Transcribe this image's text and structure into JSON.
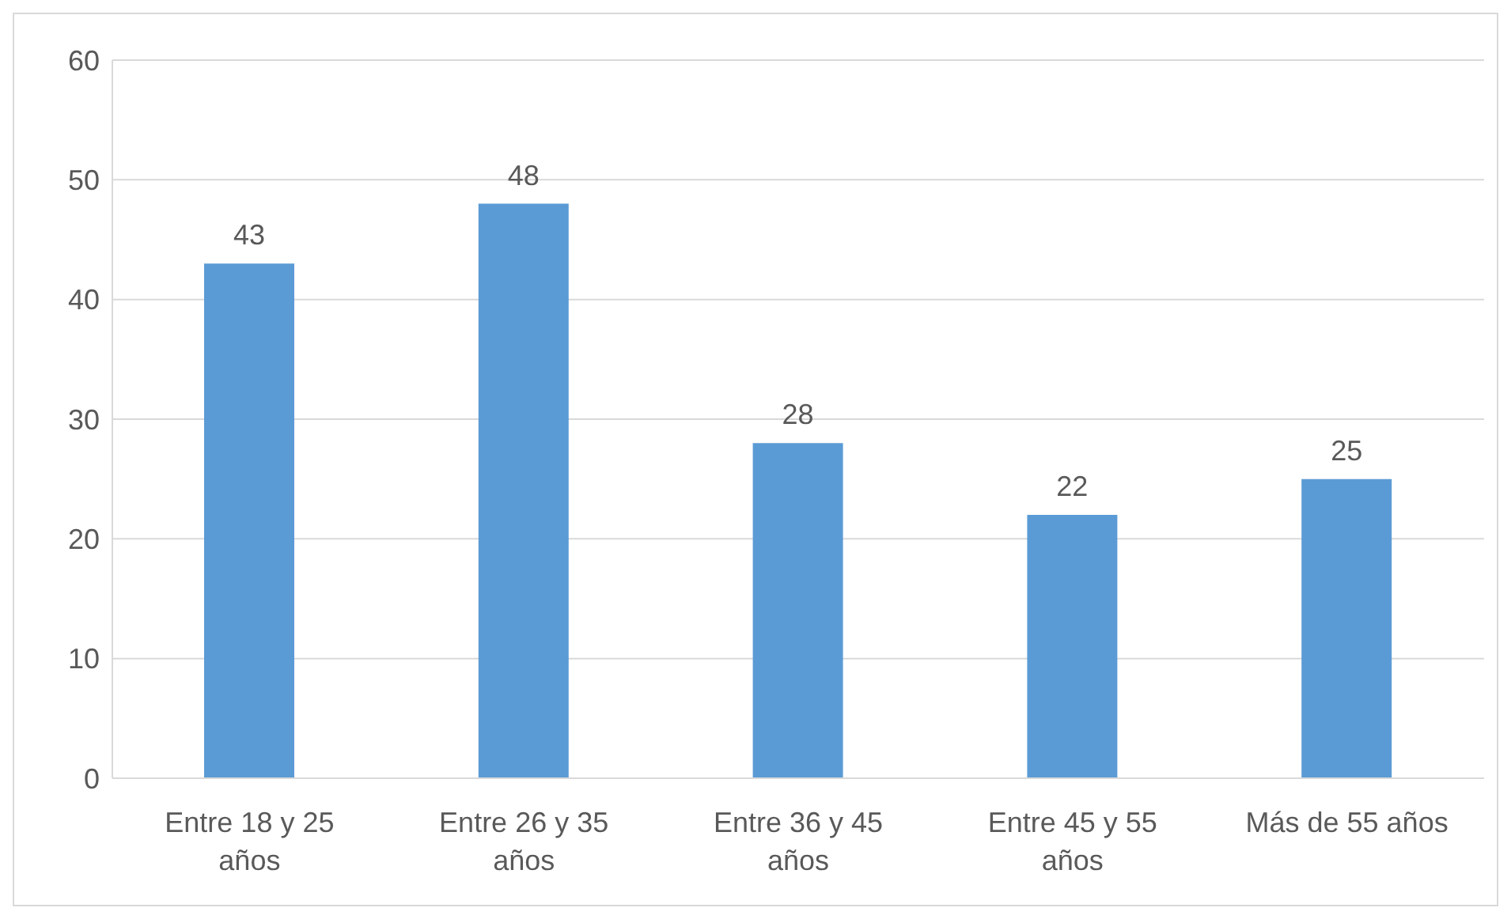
{
  "chart_data": {
    "type": "bar",
    "categories": [
      "Entre 18 y 25 años",
      "Entre 26 y 35 años",
      "Entre 36 y 45 años",
      "Entre 45 y 55 años",
      "Más de 55 años"
    ],
    "values": [
      43,
      48,
      28,
      22,
      25
    ],
    "color": "#5b9bd5",
    "ylim": [
      0,
      60
    ],
    "yticks": [
      0,
      10,
      20,
      30,
      40,
      50,
      60
    ],
    "grid": "y",
    "data_labels": true
  }
}
